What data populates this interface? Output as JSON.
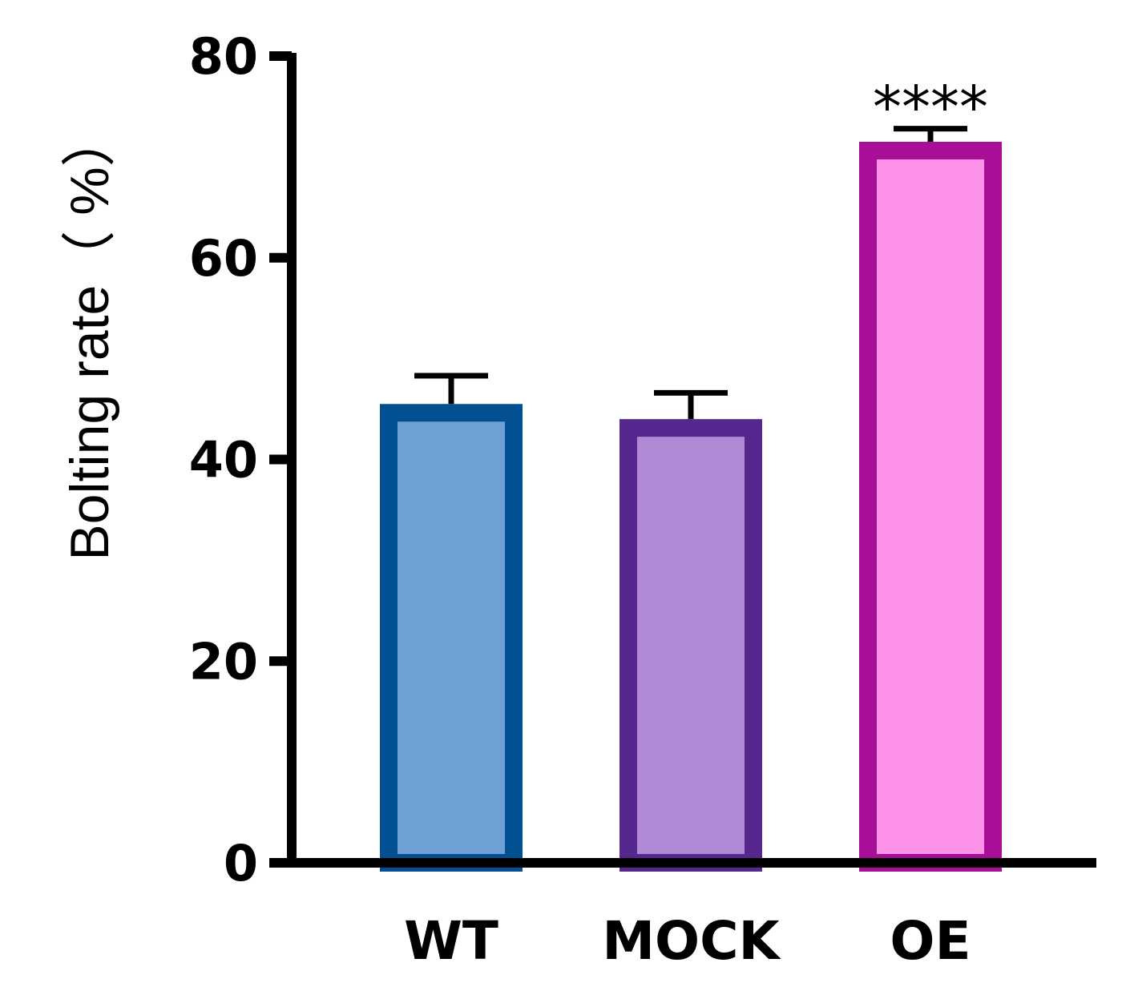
{
  "chart_data": {
    "type": "bar",
    "title": "",
    "xlabel": "",
    "ylabel": "Bolting rate（ %）",
    "categories": [
      "WT",
      "MOCK",
      "OE"
    ],
    "values": [
      45.5,
      44.0,
      71.5
    ],
    "errors": [
      2.8,
      2.6,
      1.3
    ],
    "annotations": [
      "",
      "",
      "****"
    ],
    "ylim": [
      0,
      80
    ],
    "yticks": [
      "0",
      "20",
      "40",
      "60",
      "80"
    ],
    "grid": false,
    "legend": "none",
    "colors": {
      "fills": [
        "#6da0d5",
        "#b08bd5",
        "#fd92e8"
      ],
      "strokes": [
        "#024f91",
        "#572790",
        "#a70f97"
      ],
      "axis": "#000000"
    }
  }
}
